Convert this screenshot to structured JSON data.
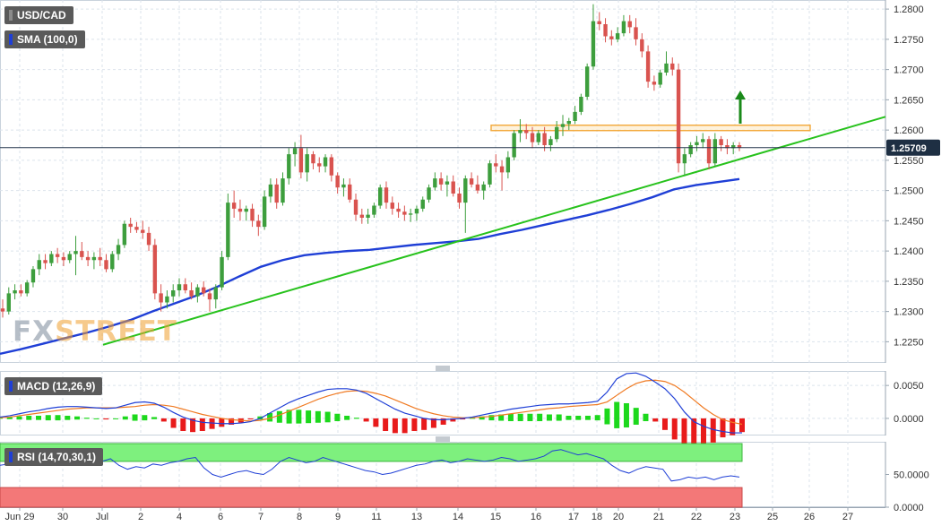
{
  "header": {
    "symbol": "USD/CAD",
    "indicator": "SMA (100,0)",
    "last_price": "1.25709",
    "watermark_part1": "FX",
    "watermark_part2": "STREET"
  },
  "macd_panel": {
    "label": "MACD (12,26,9)"
  },
  "rsi_panel": {
    "label": "RSI (14,70,30,1)"
  },
  "colors": {
    "up": "#3d9e3d",
    "down": "#d9534f",
    "sma": "#1f3fd6",
    "trendline": "#27c21c",
    "zone": "#f3a93a",
    "price_line": "#22344a",
    "macd_line": "#1f3fd6",
    "signal_line": "#f07a22",
    "hist_pos": "#1cd81c",
    "hist_neg": "#e81b1b",
    "rsi_overbought": "#7ef07e",
    "rsi_oversold": "#f37878",
    "arrow": "#1a8a1a"
  },
  "chart_data": [
    {
      "type": "candlestick",
      "title": "USD/CAD",
      "ylim": [
        1.2215,
        1.2815
      ],
      "yticks": [
        "1.2800",
        "1.2750",
        "1.2700",
        "1.2650",
        "1.2600",
        "1.2550",
        "1.2500",
        "1.2450",
        "1.2400",
        "1.2350",
        "1.2300",
        "1.2250"
      ],
      "xticks": [
        "Jun 29",
        "30",
        "Jul",
        "2",
        "4",
        "6",
        "7",
        "8",
        "9",
        "11",
        "13",
        "14",
        "15",
        "16",
        "17",
        "18",
        "20",
        "21",
        "22",
        "23",
        "25",
        "26",
        "27"
      ],
      "last_price": 1.25709,
      "candles": [
        [
          1.2305,
          1.232,
          1.229,
          1.23
        ],
        [
          1.23,
          1.234,
          1.2295,
          1.233
        ],
        [
          1.233,
          1.2345,
          1.232,
          1.2335
        ],
        [
          1.2335,
          1.2345,
          1.2325,
          1.233
        ],
        [
          1.233,
          1.2352,
          1.2325,
          1.2348
        ],
        [
          1.2348,
          1.2375,
          1.234,
          1.237
        ],
        [
          1.237,
          1.2395,
          1.236,
          1.2385
        ],
        [
          1.2385,
          1.2395,
          1.237,
          1.238
        ],
        [
          1.238,
          1.24,
          1.2375,
          1.2395
        ],
        [
          1.2395,
          1.2405,
          1.238,
          1.239
        ],
        [
          1.239,
          1.2398,
          1.2375,
          1.2385
        ],
        [
          1.2385,
          1.24,
          1.238,
          1.2395
        ],
        [
          1.2395,
          1.2425,
          1.236,
          1.24
        ],
        [
          1.24,
          1.2415,
          1.2385,
          1.239
        ],
        [
          1.239,
          1.24,
          1.2375,
          1.2385
        ],
        [
          1.2385,
          1.2398,
          1.237,
          1.239
        ],
        [
          1.239,
          1.2405,
          1.2375,
          1.2385
        ],
        [
          1.2385,
          1.2395,
          1.2365,
          1.237
        ],
        [
          1.237,
          1.24,
          1.2365,
          1.2395
        ],
        [
          1.2395,
          1.242,
          1.2385,
          1.241
        ],
        [
          1.241,
          1.245,
          1.2405,
          1.2445
        ],
        [
          1.2445,
          1.2455,
          1.243,
          1.244
        ],
        [
          1.244,
          1.2448,
          1.243,
          1.2435
        ],
        [
          1.2435,
          1.245,
          1.242,
          1.243
        ],
        [
          1.243,
          1.244,
          1.24,
          1.241
        ],
        [
          1.241,
          1.242,
          1.232,
          1.233
        ],
        [
          1.233,
          1.2345,
          1.23,
          1.2315
        ],
        [
          1.2315,
          1.2335,
          1.2305,
          1.2325
        ],
        [
          1.2325,
          1.2345,
          1.2315,
          1.2335
        ],
        [
          1.2335,
          1.2355,
          1.2325,
          1.2345
        ],
        [
          1.2345,
          1.2355,
          1.233,
          1.2335
        ],
        [
          1.2335,
          1.2348,
          1.232,
          1.2325
        ],
        [
          1.2325,
          1.2345,
          1.2315,
          1.234
        ],
        [
          1.234,
          1.235,
          1.2325,
          1.233
        ],
        [
          1.233,
          1.2338,
          1.23,
          1.232
        ],
        [
          1.232,
          1.2345,
          1.2305,
          1.234
        ],
        [
          1.234,
          1.24,
          1.2335,
          1.239
        ],
        [
          1.239,
          1.2495,
          1.2385,
          1.248
        ],
        [
          1.248,
          1.25,
          1.2455,
          1.247
        ],
        [
          1.247,
          1.2485,
          1.245,
          1.2465
        ],
        [
          1.2465,
          1.2475,
          1.245,
          1.247
        ],
        [
          1.247,
          1.2478,
          1.244,
          1.245
        ],
        [
          1.245,
          1.246,
          1.2425,
          1.244
        ],
        [
          1.244,
          1.25,
          1.2435,
          1.249
        ],
        [
          1.249,
          1.252,
          1.248,
          1.251
        ],
        [
          1.251,
          1.252,
          1.247,
          1.248
        ],
        [
          1.248,
          1.253,
          1.2475,
          1.252
        ],
        [
          1.252,
          1.257,
          1.251,
          1.256
        ],
        [
          1.256,
          1.258,
          1.254,
          1.257
        ],
        [
          1.257,
          1.2592,
          1.252,
          1.253
        ],
        [
          1.253,
          1.257,
          1.2515,
          1.256
        ],
        [
          1.256,
          1.2565,
          1.2535,
          1.2545
        ],
        [
          1.2545,
          1.2555,
          1.253,
          1.254
        ],
        [
          1.254,
          1.256,
          1.253,
          1.2555
        ],
        [
          1.2555,
          1.256,
          1.2515,
          1.2525
        ],
        [
          1.2525,
          1.253,
          1.2495,
          1.2505
        ],
        [
          1.2505,
          1.252,
          1.249,
          1.251
        ],
        [
          1.251,
          1.252,
          1.248,
          1.2485
        ],
        [
          1.2485,
          1.2495,
          1.245,
          1.246
        ],
        [
          1.246,
          1.247,
          1.2445,
          1.2455
        ],
        [
          1.2455,
          1.247,
          1.2445,
          1.246
        ],
        [
          1.246,
          1.248,
          1.2455,
          1.2475
        ],
        [
          1.2475,
          1.251,
          1.247,
          1.2505
        ],
        [
          1.2505,
          1.2515,
          1.247,
          1.248
        ],
        [
          1.248,
          1.249,
          1.246,
          1.247
        ],
        [
          1.247,
          1.248,
          1.2455,
          1.2465
        ],
        [
          1.2465,
          1.2475,
          1.245,
          1.246
        ],
        [
          1.246,
          1.247,
          1.2448,
          1.2462
        ],
        [
          1.2462,
          1.2475,
          1.245,
          1.247
        ],
        [
          1.247,
          1.249,
          1.2465,
          1.2485
        ],
        [
          1.2485,
          1.251,
          1.248,
          1.2505
        ],
        [
          1.2505,
          1.253,
          1.25,
          1.252
        ],
        [
          1.252,
          1.253,
          1.25,
          1.251
        ],
        [
          1.251,
          1.2525,
          1.249,
          1.2515
        ],
        [
          1.2515,
          1.2525,
          1.249,
          1.2495
        ],
        [
          1.2495,
          1.2505,
          1.247,
          1.248
        ],
        [
          1.248,
          1.2525,
          1.243,
          1.252
        ],
        [
          1.252,
          1.253,
          1.2505,
          1.251
        ],
        [
          1.251,
          1.2525,
          1.2495,
          1.25
        ],
        [
          1.25,
          1.2515,
          1.2485,
          1.251
        ],
        [
          1.251,
          1.255,
          1.2505,
          1.2545
        ],
        [
          1.2545,
          1.256,
          1.253,
          1.254
        ],
        [
          1.254,
          1.255,
          1.25,
          1.253
        ],
        [
          1.253,
          1.2565,
          1.252,
          1.2555
        ],
        [
          1.2555,
          1.26,
          1.255,
          1.2595
        ],
        [
          1.2595,
          1.2618,
          1.258,
          1.26
        ],
        [
          1.26,
          1.261,
          1.2585,
          1.2595
        ],
        [
          1.2595,
          1.2605,
          1.257,
          1.258
        ],
        [
          1.258,
          1.26,
          1.2575,
          1.2595
        ],
        [
          1.2595,
          1.2605,
          1.2565,
          1.2575
        ],
        [
          1.2575,
          1.259,
          1.2565,
          1.2585
        ],
        [
          1.2585,
          1.2615,
          1.258,
          1.2605
        ],
        [
          1.2605,
          1.2625,
          1.259,
          1.261
        ],
        [
          1.261,
          1.262,
          1.26,
          1.2615
        ],
        [
          1.2615,
          1.264,
          1.261,
          1.263
        ],
        [
          1.263,
          1.266,
          1.2625,
          1.2655
        ],
        [
          1.2655,
          1.271,
          1.265,
          1.2705
        ],
        [
          1.2705,
          1.2808,
          1.27,
          1.278
        ],
        [
          1.278,
          1.2795,
          1.2765,
          1.2775
        ],
        [
          1.2775,
          1.2785,
          1.2745,
          1.2755
        ],
        [
          1.2755,
          1.2765,
          1.274,
          1.275
        ],
        [
          1.275,
          1.277,
          1.2745,
          1.276
        ],
        [
          1.276,
          1.279,
          1.2755,
          1.278
        ],
        [
          1.278,
          1.279,
          1.276,
          1.277
        ],
        [
          1.277,
          1.2785,
          1.274,
          1.275
        ],
        [
          1.275,
          1.276,
          1.272,
          1.273
        ],
        [
          1.273,
          1.274,
          1.267,
          1.268
        ],
        [
          1.268,
          1.269,
          1.2665,
          1.2675
        ],
        [
          1.2675,
          1.27,
          1.267,
          1.2695
        ],
        [
          1.2695,
          1.273,
          1.269,
          1.271
        ],
        [
          1.271,
          1.272,
          1.269,
          1.27
        ],
        [
          1.27,
          1.271,
          1.253,
          1.2545
        ],
        [
          1.2545,
          1.257,
          1.2525,
          1.256
        ],
        [
          1.256,
          1.258,
          1.2555,
          1.2575
        ],
        [
          1.2575,
          1.259,
          1.2565,
          1.258
        ],
        [
          1.258,
          1.2595,
          1.257,
          1.2585
        ],
        [
          1.2585,
          1.259,
          1.2535,
          1.2545
        ],
        [
          1.2545,
          1.2595,
          1.254,
          1.2585
        ],
        [
          1.2585,
          1.259,
          1.2565,
          1.2575
        ],
        [
          1.2575,
          1.2585,
          1.256,
          1.257
        ],
        [
          1.257,
          1.258,
          1.256,
          1.2575
        ],
        [
          1.2575,
          1.258,
          1.2565,
          1.2571
        ]
      ],
      "sma_100": [
        1.223,
        1.2238,
        1.2247,
        1.2256,
        1.2265,
        1.2275,
        1.2286,
        1.23,
        1.2313,
        1.2326,
        1.2341,
        1.2358,
        1.2374,
        1.2385,
        1.2393,
        1.2397,
        1.24,
        1.2402,
        1.2406,
        1.241,
        1.2413,
        1.2416,
        1.242,
        1.2428,
        1.2435,
        1.2443,
        1.2451,
        1.2459,
        1.2468,
        1.2478,
        1.2489,
        1.2502,
        1.2509,
        1.2514,
        1.2519
      ],
      "trendline": [
        [
          1.2245
        ],
        [
          1.2622
        ]
      ],
      "resistance_zone": [
        1.26,
        1.2608
      ],
      "arrow": "up"
    },
    {
      "type": "macd",
      "title": "MACD (12,26,9)",
      "yticks": [
        "0.0050",
        "0.0000"
      ],
      "ylim": [
        -0.0026,
        0.0072
      ],
      "macd": [
        0.0002,
        0.0004,
        0.0007,
        0.001,
        0.0012,
        0.0015,
        0.0017,
        0.0018,
        0.0018,
        0.0017,
        0.0016,
        0.0015,
        0.0016,
        0.002,
        0.0024,
        0.0025,
        0.0023,
        0.0017,
        0.0009,
        0.0002,
        -0.0003,
        -0.0006,
        -0.0007,
        -0.0008,
        -0.0008,
        -0.0007,
        -0.0005,
        0.0,
        0.0008,
        0.0016,
        0.0024,
        0.003,
        0.0035,
        0.004,
        0.0044,
        0.0045,
        0.0045,
        0.0043,
        0.0038,
        0.003,
        0.0022,
        0.0014,
        0.0008,
        0.0004,
        0.0,
        -0.0002,
        -0.0002,
        -0.0001,
        0.0,
        0.0002,
        0.0005,
        0.0008,
        0.0011,
        0.0014,
        0.0016,
        0.0018,
        0.002,
        0.0021,
        0.0022,
        0.0022,
        0.0023,
        0.0024,
        0.0026,
        0.004,
        0.006,
        0.0068,
        0.0069,
        0.0064,
        0.0055,
        0.0045,
        0.003,
        0.001,
        -0.0005,
        -0.0012,
        -0.0017,
        -0.002,
        -0.0022,
        -0.0022
      ],
      "signal": [
        0.0001,
        0.0002,
        0.0004,
        0.0006,
        0.0008,
        0.001,
        0.0012,
        0.0014,
        0.0015,
        0.0016,
        0.0016,
        0.0016,
        0.0016,
        0.0017,
        0.0018,
        0.002,
        0.0021,
        0.002,
        0.0018,
        0.0014,
        0.001,
        0.0006,
        0.0003,
        0.0,
        -0.0002,
        -0.0003,
        -0.0004,
        -0.0003,
        0.0,
        0.0005,
        0.0011,
        0.0017,
        0.0023,
        0.0029,
        0.0034,
        0.0038,
        0.0041,
        0.0042,
        0.0041,
        0.0038,
        0.0034,
        0.0028,
        0.0022,
        0.0016,
        0.0011,
        0.0007,
        0.0004,
        0.0002,
        0.0001,
        0.0001,
        0.0002,
        0.0003,
        0.0005,
        0.0007,
        0.0009,
        0.0011,
        0.0013,
        0.0015,
        0.0016,
        0.0018,
        0.0019,
        0.002,
        0.0021,
        0.0025,
        0.0035,
        0.0045,
        0.0053,
        0.0057,
        0.0058,
        0.0056,
        0.005,
        0.004,
        0.0028,
        0.0016,
        0.0006,
        -0.0002,
        -0.0006,
        -0.0009
      ]
    },
    {
      "type": "rsi",
      "title": "RSI (14,70,30,1)",
      "yticks": [
        "50.0000",
        "0.0000"
      ],
      "ylim": [
        0,
        100
      ],
      "levels": [
        70,
        30
      ],
      "values": [
        64,
        66,
        70,
        72,
        68,
        70,
        74,
        72,
        70,
        66,
        68,
        72,
        70,
        74,
        64,
        58,
        62,
        60,
        66,
        64,
        68,
        70,
        74,
        76,
        60,
        50,
        46,
        50,
        54,
        56,
        52,
        50,
        58,
        70,
        76,
        72,
        68,
        70,
        76,
        72,
        68,
        64,
        60,
        56,
        54,
        50,
        52,
        56,
        60,
        64,
        66,
        70,
        72,
        68,
        70,
        74,
        72,
        70,
        72,
        76,
        74,
        70,
        72,
        74,
        78,
        86,
        88,
        84,
        80,
        82,
        78,
        74,
        64,
        56,
        52,
        58,
        62,
        60,
        58,
        40,
        42,
        46,
        44,
        46,
        42,
        46,
        48,
        46
      ]
    }
  ]
}
